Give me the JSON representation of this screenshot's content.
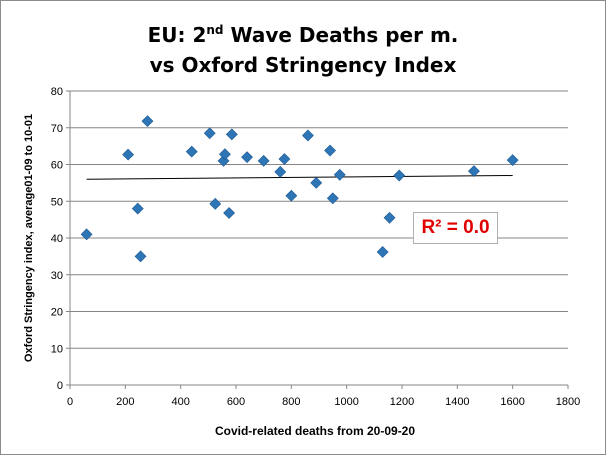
{
  "chart_data": {
    "type": "scatter",
    "title_line1_prefix": "EU: 2",
    "title_line1_sup": "nd",
    "title_line1_suffix": " Wave Deaths per m.",
    "title_line2": "vs Oxford Stringency Index",
    "xlabel": "Covid-related deaths from 20-09-20",
    "ylabel": "Oxford Stringency index, average01-09 to 10-01",
    "xlim": [
      0,
      1800
    ],
    "ylim": [
      0,
      80
    ],
    "xticks": [
      0,
      200,
      400,
      600,
      800,
      1000,
      1200,
      1400,
      1600,
      1800
    ],
    "yticks": [
      0,
      10,
      20,
      30,
      40,
      50,
      60,
      70,
      80
    ],
    "grid": "horizontal",
    "marker_color": "#2e75b6",
    "trendline": {
      "x": [
        60,
        1600
      ],
      "y": [
        56.0,
        57.0
      ],
      "color": "#000000"
    },
    "annotation": "R² = 0.0",
    "annotation_color": "#e00000",
    "points": [
      {
        "x": 60,
        "y": 41
      },
      {
        "x": 210,
        "y": 62.7
      },
      {
        "x": 245,
        "y": 48
      },
      {
        "x": 255,
        "y": 35
      },
      {
        "x": 280,
        "y": 71.8
      },
      {
        "x": 440,
        "y": 63.5
      },
      {
        "x": 505,
        "y": 68.5
      },
      {
        "x": 525,
        "y": 49.3
      },
      {
        "x": 555,
        "y": 61
      },
      {
        "x": 560,
        "y": 62.8
      },
      {
        "x": 575,
        "y": 46.8
      },
      {
        "x": 585,
        "y": 68.2
      },
      {
        "x": 640,
        "y": 62
      },
      {
        "x": 700,
        "y": 61
      },
      {
        "x": 760,
        "y": 58
      },
      {
        "x": 775,
        "y": 61.5
      },
      {
        "x": 800,
        "y": 51.5
      },
      {
        "x": 860,
        "y": 67.9
      },
      {
        "x": 890,
        "y": 55
      },
      {
        "x": 940,
        "y": 63.8
      },
      {
        "x": 950,
        "y": 50.8
      },
      {
        "x": 975,
        "y": 57.2
      },
      {
        "x": 1130,
        "y": 36.2
      },
      {
        "x": 1155,
        "y": 45.5
      },
      {
        "x": 1190,
        "y": 57
      },
      {
        "x": 1460,
        "y": 58.2
      },
      {
        "x": 1600,
        "y": 61.2
      }
    ]
  }
}
